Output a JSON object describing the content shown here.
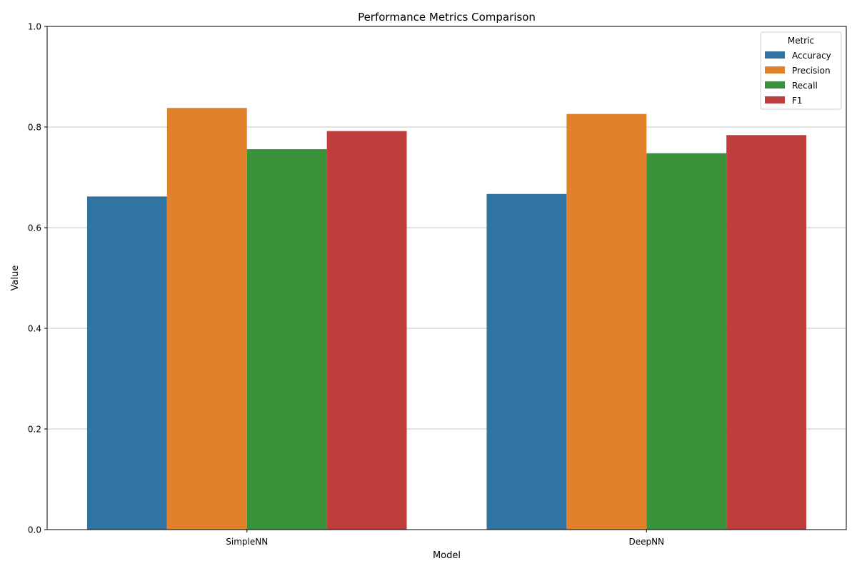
{
  "chart_data": {
    "type": "bar",
    "title": "Performance Metrics Comparison",
    "xlabel": "Model",
    "ylabel": "Value",
    "ylim": [
      0,
      1
    ],
    "yticks": [
      0.0,
      0.2,
      0.4,
      0.6,
      0.8,
      1.0
    ],
    "ytick_labels": [
      "0.0",
      "0.2",
      "0.4",
      "0.6",
      "0.8",
      "1.0"
    ],
    "grid": "y",
    "categories": [
      "SimpleNN",
      "DeepNN"
    ],
    "legend": {
      "title": "Metric",
      "position": "top-right"
    },
    "series": [
      {
        "name": "Accuracy",
        "color": "#3274a1",
        "values": [
          0.662,
          0.667
        ]
      },
      {
        "name": "Precision",
        "color": "#e1812c",
        "values": [
          0.838,
          0.826
        ]
      },
      {
        "name": "Recall",
        "color": "#3a923a",
        "values": [
          0.756,
          0.748
        ]
      },
      {
        "name": "F1",
        "color": "#c03d3e",
        "values": [
          0.792,
          0.784
        ]
      }
    ]
  }
}
